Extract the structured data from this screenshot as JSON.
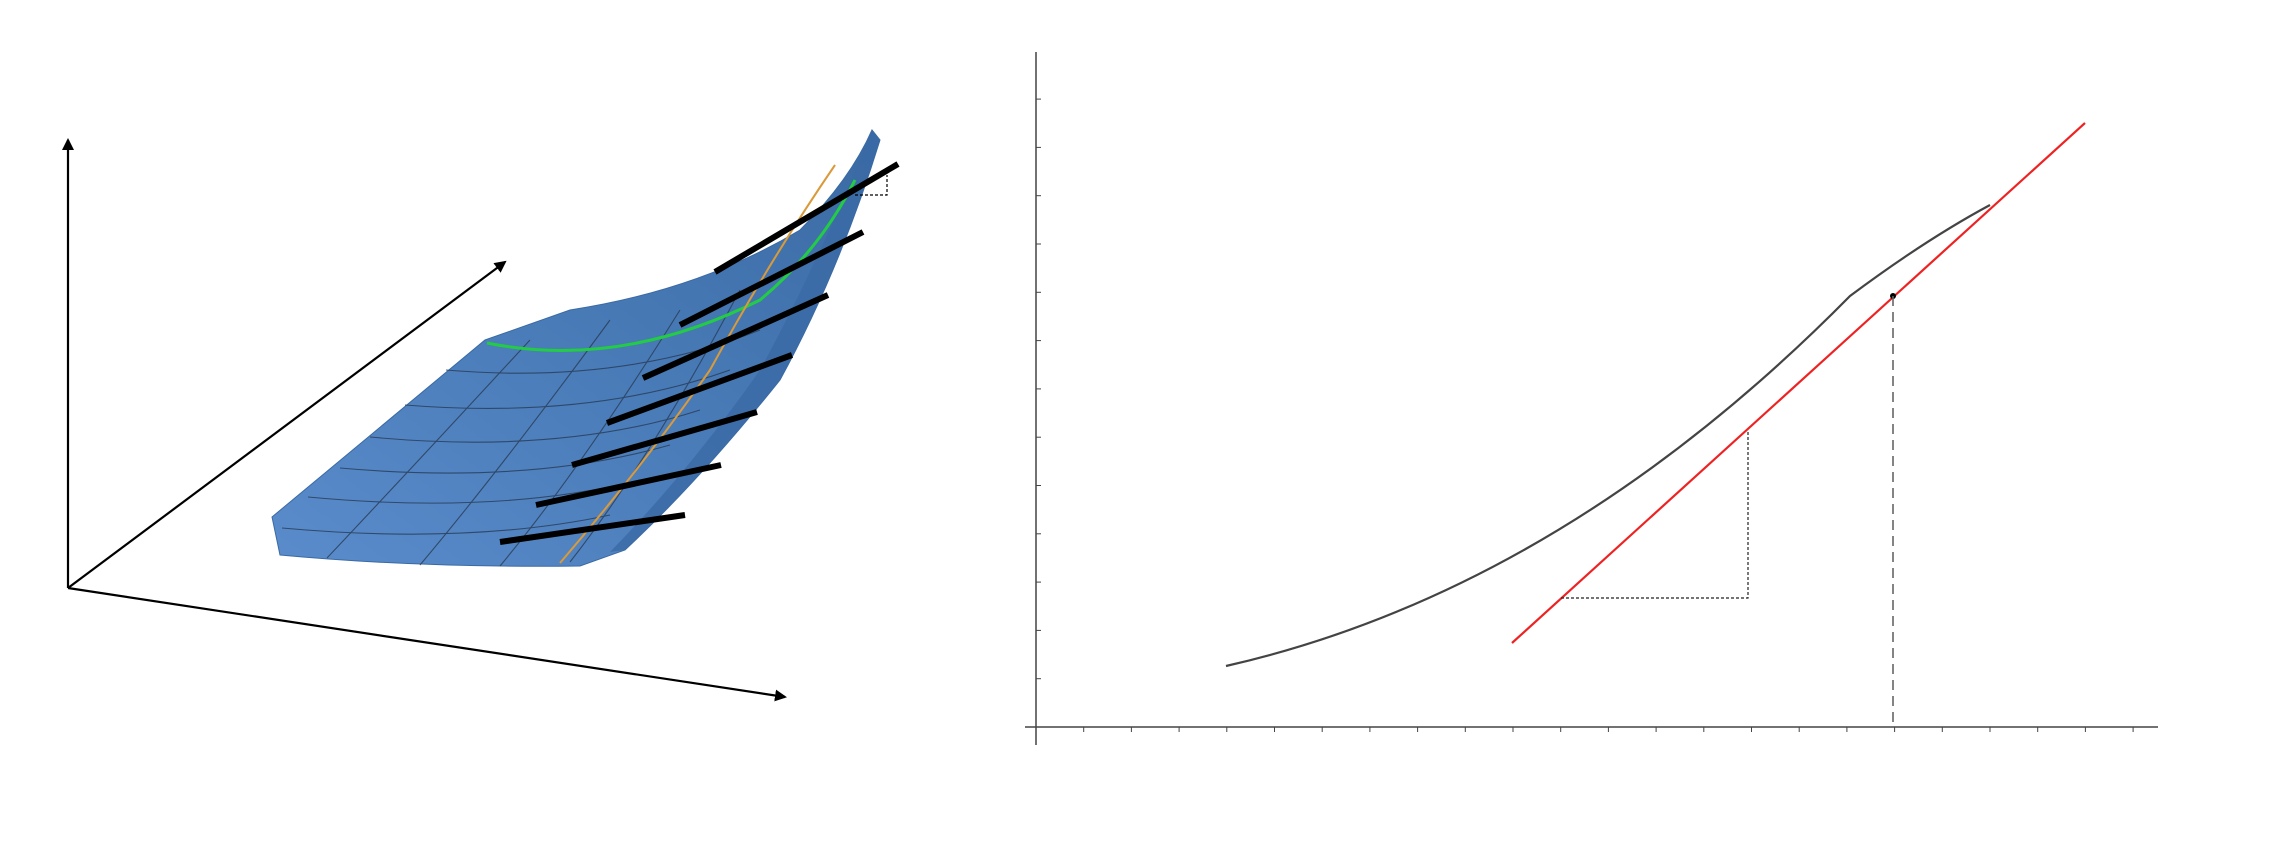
{
  "figure": {
    "left_panel": {
      "description_labels": [],
      "colors": {
        "surface": "#4a7fba",
        "surface_dark": "#3a6aa3",
        "mesh": "#2a3f5a",
        "green_curve": "#22cc44",
        "orange_curve": "#d99a3a",
        "tangent_segments": "#000000",
        "axes": "#000000"
      },
      "tangent_segment_count": 7
    },
    "right_panel": {
      "colors": {
        "curve": "#444444",
        "tangent": "#ee2222",
        "axes": "#444444",
        "guides": "#555555"
      },
      "x_tick_count": 24,
      "y_tick_count": 14
    }
  }
}
